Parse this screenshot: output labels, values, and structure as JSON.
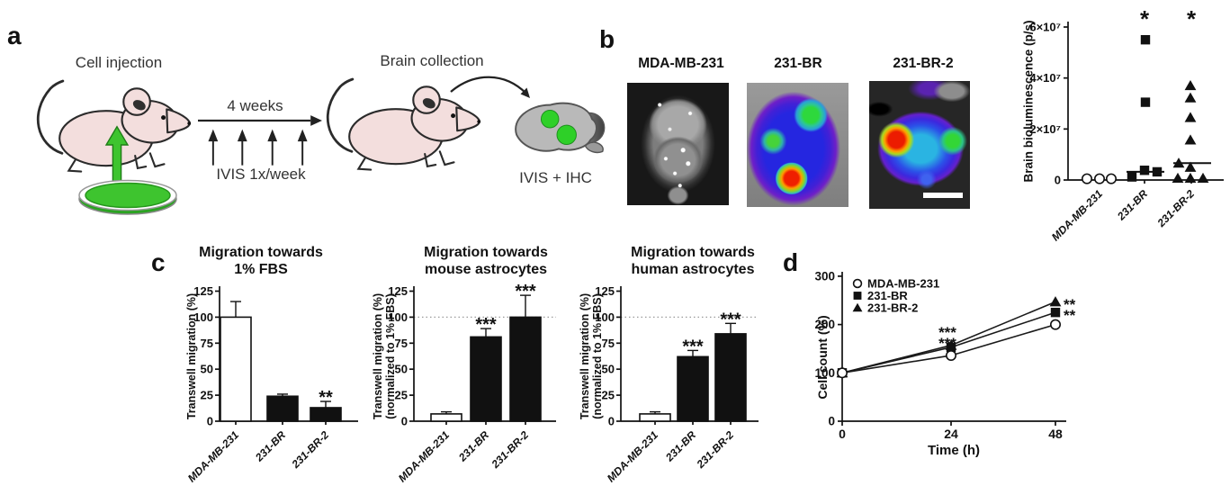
{
  "panels": {
    "a": "a",
    "b": "b",
    "c": "c",
    "d": "d"
  },
  "panel_a": {
    "cell_injection_label": "Cell injection",
    "timeline_duration": "4 weeks",
    "imaging_schedule": "IVIS 1x/week",
    "brain_collection_label": "Brain collection",
    "readout_label": "IVIS + IHC",
    "colors": {
      "mouse_body": "#f3dedd",
      "outline": "#2b2b2b",
      "dish_green": "#3ec42f",
      "brain_gray": "#b9b9b9",
      "tumor_green": "#2ed028"
    }
  },
  "panel_b": {
    "image_titles": [
      "MDA-MB-231",
      "231-BR",
      "231-BR-2"
    ]
  },
  "chart_data": [
    {
      "id": "brain-bioluminescence-scatter",
      "type": "scatter",
      "ylabel": "Brain bioluminescence (p/s)",
      "value_unit": "x10^7 p/s",
      "ylim": [
        0,
        6.2
      ],
      "yticks": [
        {
          "value": 0,
          "label": "0"
        },
        {
          "value": 2,
          "label": "2×10⁷"
        },
        {
          "value": 4,
          "label": "4×10⁷"
        },
        {
          "value": 6,
          "label": "6×10⁷"
        }
      ],
      "categories": [
        "MDA-MB-231",
        "231-BR",
        "231-BR-2"
      ],
      "groups": [
        {
          "category": "MDA-MB-231",
          "marker": "open-circle",
          "significance": "",
          "points": [
            [
              -14,
              0.05
            ],
            [
              0,
              0.05
            ],
            [
              13,
              0.05
            ]
          ],
          "median_line": null
        },
        {
          "category": "231-BR",
          "marker": "filled-square",
          "significance": "*",
          "points": [
            [
              1,
              5.5
            ],
            [
              1,
              3.05
            ],
            [
              -14,
              0.12
            ],
            [
              0,
              0.38
            ],
            [
              14,
              0.32
            ]
          ],
          "median_line": 0.32
        },
        {
          "category": "231-BR-2",
          "marker": "filled-triangle",
          "significance": "*",
          "points": [
            [
              -1,
              3.7
            ],
            [
              -1,
              3.22
            ],
            [
              -1,
              2.45
            ],
            [
              -1,
              1.57
            ],
            [
              -14,
              0.66
            ],
            [
              -1,
              0.5
            ],
            [
              -15,
              0.07
            ],
            [
              -1,
              0.07
            ],
            [
              13,
              0.07
            ]
          ],
          "median_line": 0.66
        }
      ]
    },
    {
      "id": "migration-1pct-fbs",
      "type": "bar",
      "title": "Migration towards\n1% FBS",
      "ylabel": "Transwell migration (%)",
      "yticks": [
        0,
        25,
        50,
        75,
        100,
        125
      ],
      "ylim": [
        0,
        125
      ],
      "categories": [
        "MDA-MB-231",
        "231-BR",
        "231-BR-2"
      ],
      "values": [
        100,
        24,
        13
      ],
      "errors": [
        15,
        2,
        6
      ],
      "bar_fills": [
        "white",
        "black",
        "black"
      ],
      "significance": [
        "",
        "",
        "**"
      ],
      "reference_line": null
    },
    {
      "id": "migration-mouse-astrocytes",
      "type": "bar",
      "title": "Migration towards\nmouse astrocytes",
      "ylabel": "Transwell migration (%)\n(normalized to 1% FBS)",
      "yticks": [
        0,
        25,
        50,
        75,
        100,
        125
      ],
      "ylim": [
        0,
        125
      ],
      "categories": [
        "MDA-MB-231",
        "231-BR",
        "231-BR-2"
      ],
      "values": [
        7,
        81,
        100
      ],
      "errors": [
        2,
        8,
        21
      ],
      "bar_fills": [
        "white",
        "black",
        "black"
      ],
      "significance": [
        "",
        "***",
        "***"
      ],
      "reference_line": 100
    },
    {
      "id": "migration-human-astrocytes",
      "type": "bar",
      "title": "Migration towards\nhuman astrocytes",
      "ylabel": "Transwell migration (%)\n(normalized to 1% FBS)",
      "yticks": [
        0,
        25,
        50,
        75,
        100,
        125
      ],
      "ylim": [
        0,
        125
      ],
      "categories": [
        "MDA-MB-231",
        "231-BR",
        "231-BR-2"
      ],
      "values": [
        7,
        62,
        84
      ],
      "errors": [
        2,
        6,
        10
      ],
      "bar_fills": [
        "white",
        "black",
        "black"
      ],
      "significance": [
        "",
        "***",
        "***"
      ],
      "reference_line": 100
    },
    {
      "id": "cell-count-growth",
      "type": "line",
      "ylabel": "Cell count (%)",
      "xlabel": "Time (h)",
      "x": [
        0,
        24,
        48
      ],
      "yticks": [
        0,
        100,
        200,
        300
      ],
      "ylim": [
        0,
        300
      ],
      "series": [
        {
          "name": "MDA-MB-231",
          "marker": "open-circle",
          "values": [
            100,
            136,
            200
          ]
        },
        {
          "name": "231-BR",
          "marker": "filled-square",
          "values": [
            100,
            153,
            225
          ]
        },
        {
          "name": "231-BR-2",
          "marker": "filled-triangle",
          "values": [
            100,
            157,
            247
          ]
        }
      ],
      "annotations": [
        {
          "text": "***",
          "x": 24,
          "y_value": 173,
          "align": "middle"
        },
        {
          "text": "***",
          "x": 24,
          "y_value": 151,
          "align": "middle"
        },
        {
          "text": "**",
          "x": 48,
          "y_value": 231,
          "align": "start"
        },
        {
          "text": "**",
          "x": 48,
          "y_value": 209,
          "align": "start"
        }
      ],
      "legend_position": "top-left"
    }
  ]
}
